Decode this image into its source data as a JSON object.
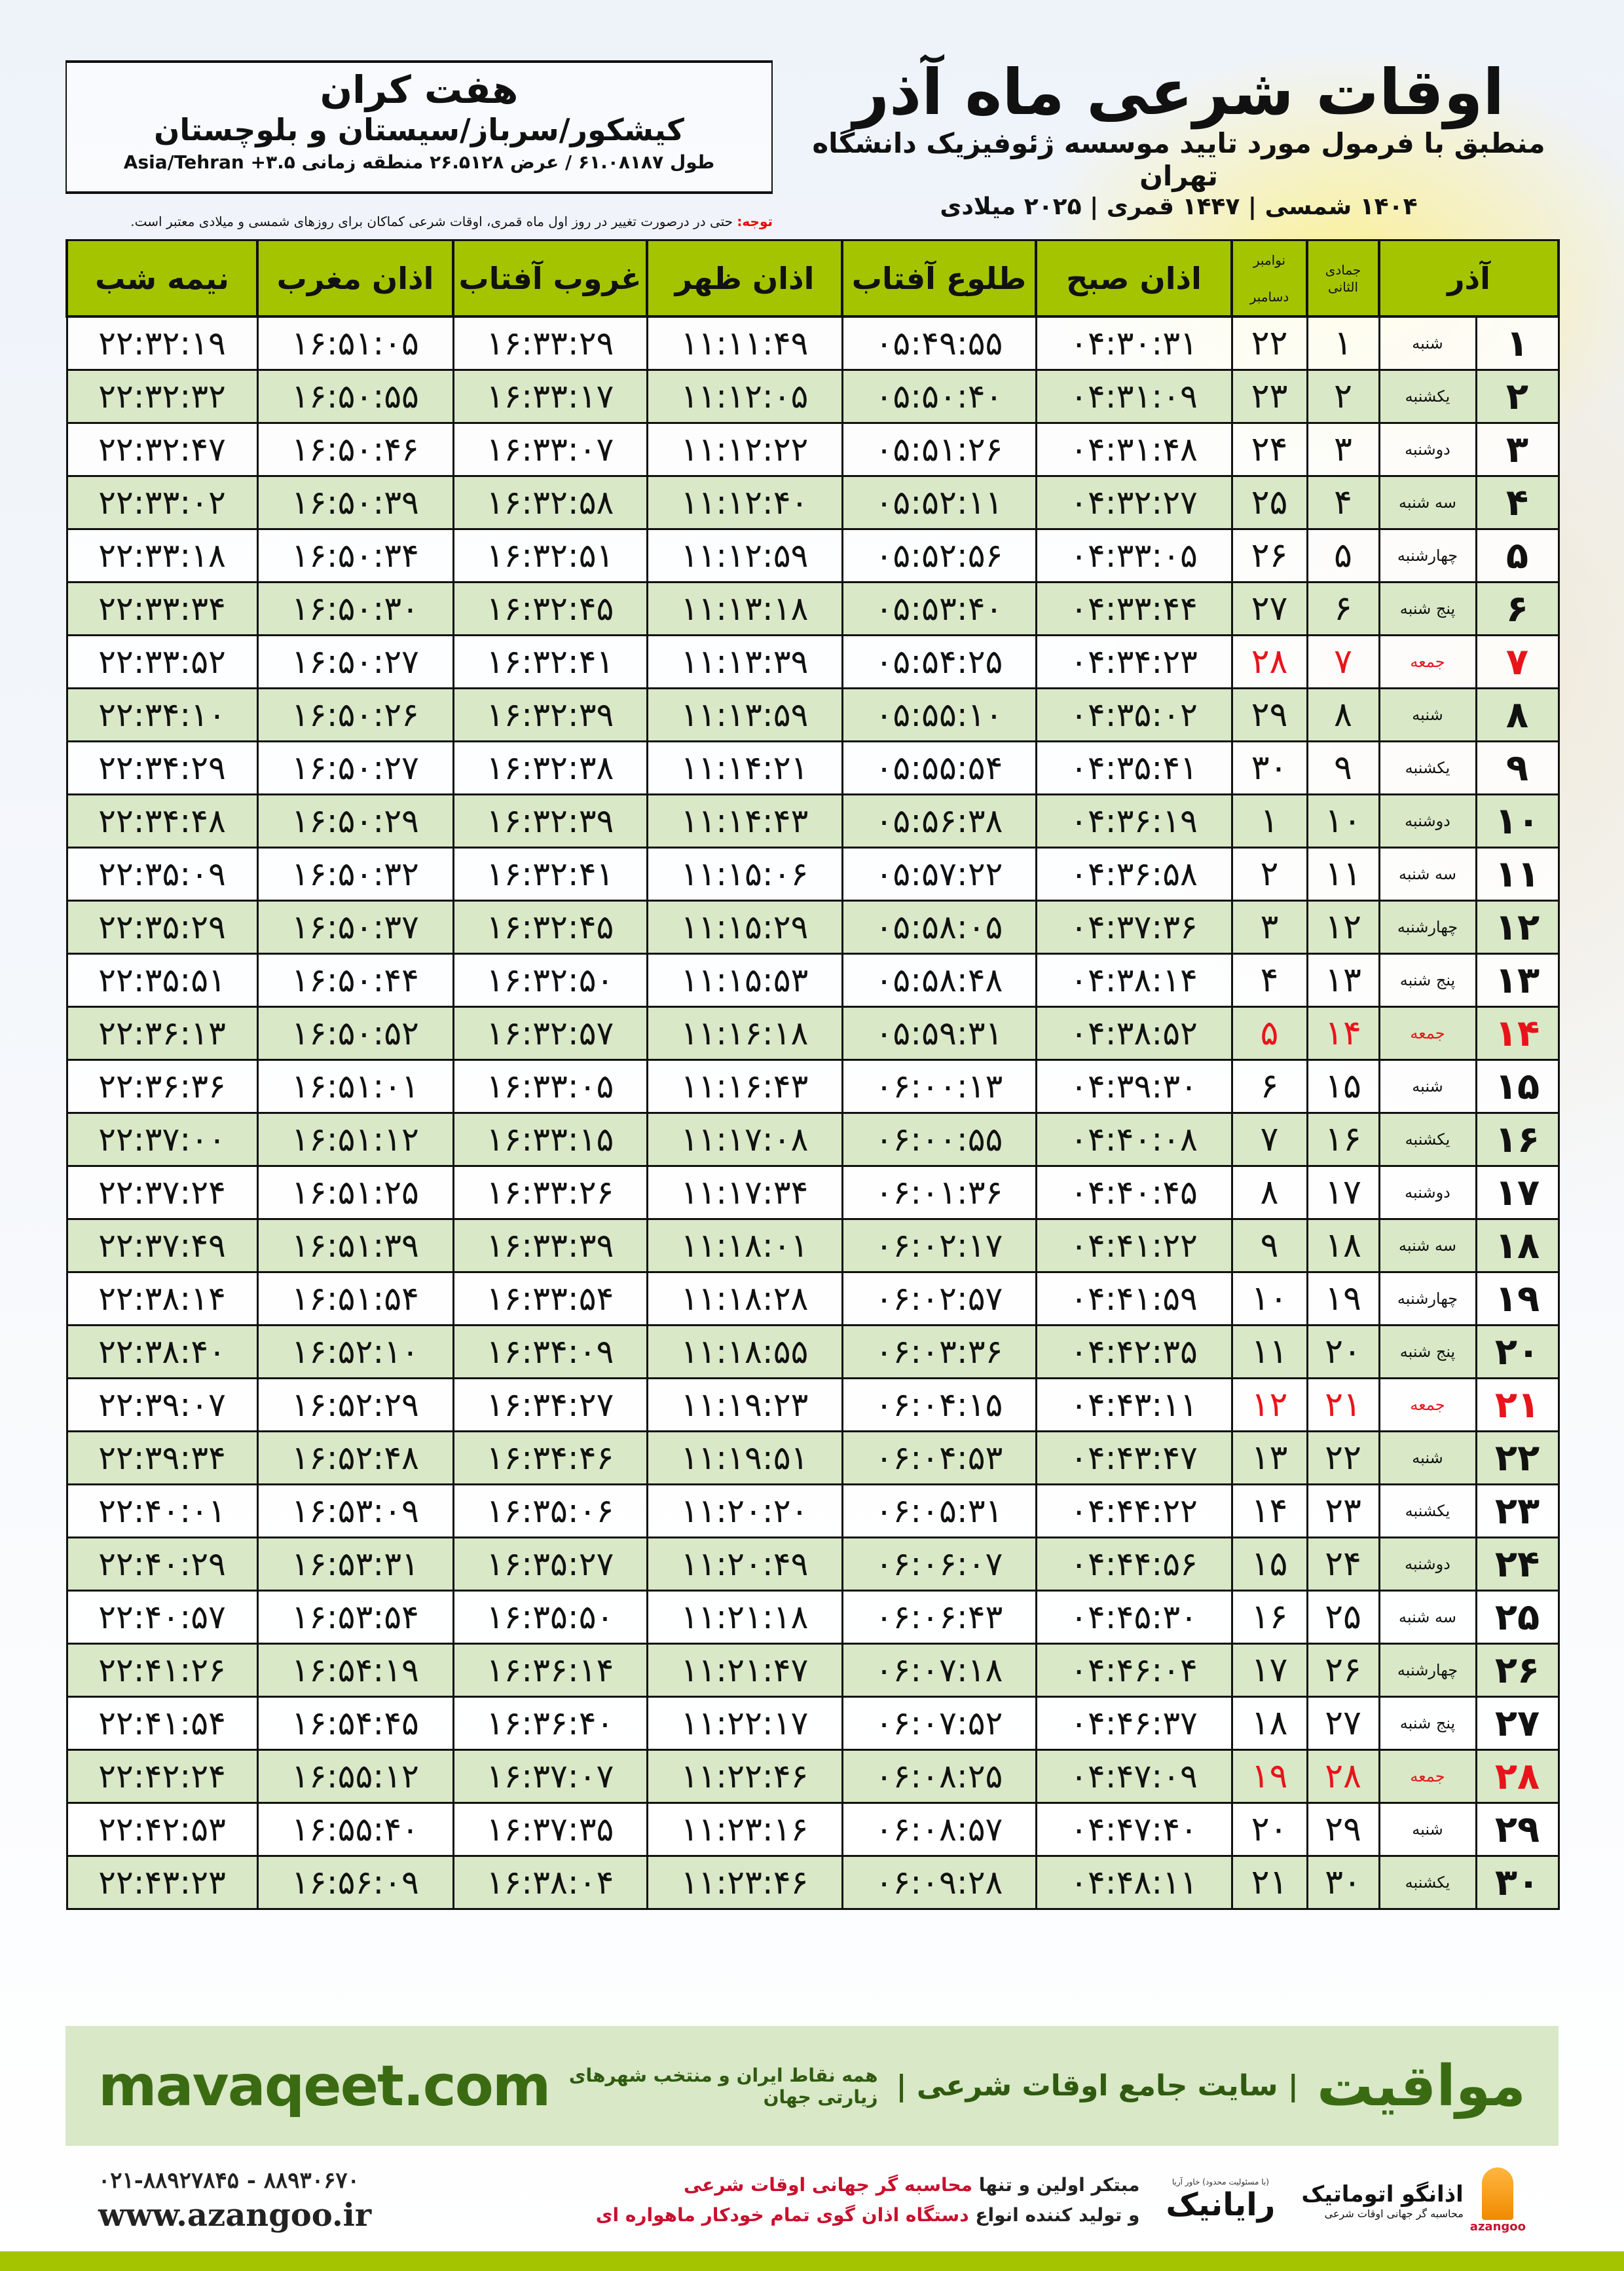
{
  "location": {
    "city": "هفت کران",
    "province": "کیشکور/سرباز/سیستان و بلوچستان",
    "coords": "طول ۶۱.۰۸۱۸۷ / عرض ۲۶.۵۱۲۸ منطقه زمانی ۳.۵+ Asia/Tehran"
  },
  "header": {
    "title": "اوقات شرعی ماه آذر",
    "subtitle": "منطبق با فرمول مورد تایید موسسه ژئوفیزیک دانشگاه تهران",
    "years": "۱۴۰۴ شمسی | ۱۴۴۷ قمری | ۲۰۲۵ میلادی",
    "note_label": "توجه:",
    "note_text": " حتی در درصورت تغییر در روز اول ماه قمری، اوقات شرعی کماکان برای روزهای شمسی و میلادی معتبر است."
  },
  "colors": {
    "header_green": "#a5c400",
    "row_green": "#d9e8c6",
    "friday_red": "#e8141b",
    "brand_green": "#3a6b12"
  },
  "table": {
    "columns": {
      "day": "آذر",
      "hijri": "جمادی الثانی",
      "greg_top": "نوامبر",
      "greg_bottom": "دسامبر",
      "subh": "اذان صبح",
      "tulu": "طلوع آفتاب",
      "zuhr": "اذان ظهر",
      "ghurub": "غروب آفتاب",
      "maghrib": "اذان مغرب",
      "nime": "نیمه شب"
    },
    "rows": [
      {
        "day": "۱",
        "weekday": "شنبه",
        "hijri": "۱",
        "greg": "۲۲",
        "subh": "۰۴:۳۰:۳۱",
        "tulu": "۰۵:۴۹:۵۵",
        "zuhr": "۱۱:۱۱:۴۹",
        "ghurub": "۱۶:۳۳:۲۹",
        "maghrib": "۱۶:۵۱:۰۵",
        "nime": "۲۲:۳۲:۱۹",
        "friday": false
      },
      {
        "day": "۲",
        "weekday": "یکشنبه",
        "hijri": "۲",
        "greg": "۲۳",
        "subh": "۰۴:۳۱:۰۹",
        "tulu": "۰۵:۵۰:۴۰",
        "zuhr": "۱۱:۱۲:۰۵",
        "ghurub": "۱۶:۳۳:۱۷",
        "maghrib": "۱۶:۵۰:۵۵",
        "nime": "۲۲:۳۲:۳۲",
        "friday": false
      },
      {
        "day": "۳",
        "weekday": "دوشنبه",
        "hijri": "۳",
        "greg": "۲۴",
        "subh": "۰۴:۳۱:۴۸",
        "tulu": "۰۵:۵۱:۲۶",
        "zuhr": "۱۱:۱۲:۲۲",
        "ghurub": "۱۶:۳۳:۰۷",
        "maghrib": "۱۶:۵۰:۴۶",
        "nime": "۲۲:۳۲:۴۷",
        "friday": false
      },
      {
        "day": "۴",
        "weekday": "سه شنبه",
        "hijri": "۴",
        "greg": "۲۵",
        "subh": "۰۴:۳۲:۲۷",
        "tulu": "۰۵:۵۲:۱۱",
        "zuhr": "۱۱:۱۲:۴۰",
        "ghurub": "۱۶:۳۲:۵۸",
        "maghrib": "۱۶:۵۰:۳۹",
        "nime": "۲۲:۳۳:۰۲",
        "friday": false
      },
      {
        "day": "۵",
        "weekday": "چهارشنبه",
        "hijri": "۵",
        "greg": "۲۶",
        "subh": "۰۴:۳۳:۰۵",
        "tulu": "۰۵:۵۲:۵۶",
        "zuhr": "۱۱:۱۲:۵۹",
        "ghurub": "۱۶:۳۲:۵۱",
        "maghrib": "۱۶:۵۰:۳۴",
        "nime": "۲۲:۳۳:۱۸",
        "friday": false
      },
      {
        "day": "۶",
        "weekday": "پنج شنبه",
        "hijri": "۶",
        "greg": "۲۷",
        "subh": "۰۴:۳۳:۴۴",
        "tulu": "۰۵:۵۳:۴۰",
        "zuhr": "۱۱:۱۳:۱۸",
        "ghurub": "۱۶:۳۲:۴۵",
        "maghrib": "۱۶:۵۰:۳۰",
        "nime": "۲۲:۳۳:۳۴",
        "friday": false
      },
      {
        "day": "۷",
        "weekday": "جمعه",
        "hijri": "۷",
        "greg": "۲۸",
        "subh": "۰۴:۳۴:۲۳",
        "tulu": "۰۵:۵۴:۲۵",
        "zuhr": "۱۱:۱۳:۳۹",
        "ghurub": "۱۶:۳۲:۴۱",
        "maghrib": "۱۶:۵۰:۲۷",
        "nime": "۲۲:۳۳:۵۲",
        "friday": true
      },
      {
        "day": "۸",
        "weekday": "شنبه",
        "hijri": "۸",
        "greg": "۲۹",
        "subh": "۰۴:۳۵:۰۲",
        "tulu": "۰۵:۵۵:۱۰",
        "zuhr": "۱۱:۱۳:۵۹",
        "ghurub": "۱۶:۳۲:۳۹",
        "maghrib": "۱۶:۵۰:۲۶",
        "nime": "۲۲:۳۴:۱۰",
        "friday": false
      },
      {
        "day": "۹",
        "weekday": "یکشنبه",
        "hijri": "۹",
        "greg": "۳۰",
        "subh": "۰۴:۳۵:۴۱",
        "tulu": "۰۵:۵۵:۵۴",
        "zuhr": "۱۱:۱۴:۲۱",
        "ghurub": "۱۶:۳۲:۳۸",
        "maghrib": "۱۶:۵۰:۲۷",
        "nime": "۲۲:۳۴:۲۹",
        "friday": false
      },
      {
        "day": "۱۰",
        "weekday": "دوشنبه",
        "hijri": "۱۰",
        "greg": "۱",
        "subh": "۰۴:۳۶:۱۹",
        "tulu": "۰۵:۵۶:۳۸",
        "zuhr": "۱۱:۱۴:۴۳",
        "ghurub": "۱۶:۳۲:۳۹",
        "maghrib": "۱۶:۵۰:۲۹",
        "nime": "۲۲:۳۴:۴۸",
        "friday": false
      },
      {
        "day": "۱۱",
        "weekday": "سه شنبه",
        "hijri": "۱۱",
        "greg": "۲",
        "subh": "۰۴:۳۶:۵۸",
        "tulu": "۰۵:۵۷:۲۲",
        "zuhr": "۱۱:۱۵:۰۶",
        "ghurub": "۱۶:۳۲:۴۱",
        "maghrib": "۱۶:۵۰:۳۲",
        "nime": "۲۲:۳۵:۰۹",
        "friday": false
      },
      {
        "day": "۱۲",
        "weekday": "چهارشنبه",
        "hijri": "۱۲",
        "greg": "۳",
        "subh": "۰۴:۳۷:۳۶",
        "tulu": "۰۵:۵۸:۰۵",
        "zuhr": "۱۱:۱۵:۲۹",
        "ghurub": "۱۶:۳۲:۴۵",
        "maghrib": "۱۶:۵۰:۳۷",
        "nime": "۲۲:۳۵:۲۹",
        "friday": false
      },
      {
        "day": "۱۳",
        "weekday": "پنج شنبه",
        "hijri": "۱۳",
        "greg": "۴",
        "subh": "۰۴:۳۸:۱۴",
        "tulu": "۰۵:۵۸:۴۸",
        "zuhr": "۱۱:۱۵:۵۳",
        "ghurub": "۱۶:۳۲:۵۰",
        "maghrib": "۱۶:۵۰:۴۴",
        "nime": "۲۲:۳۵:۵۱",
        "friday": false
      },
      {
        "day": "۱۴",
        "weekday": "جمعه",
        "hijri": "۱۴",
        "greg": "۵",
        "subh": "۰۴:۳۸:۵۲",
        "tulu": "۰۵:۵۹:۳۱",
        "zuhr": "۱۱:۱۶:۱۸",
        "ghurub": "۱۶:۳۲:۵۷",
        "maghrib": "۱۶:۵۰:۵۲",
        "nime": "۲۲:۳۶:۱۳",
        "friday": true
      },
      {
        "day": "۱۵",
        "weekday": "شنبه",
        "hijri": "۱۵",
        "greg": "۶",
        "subh": "۰۴:۳۹:۳۰",
        "tulu": "۰۶:۰۰:۱۳",
        "zuhr": "۱۱:۱۶:۴۳",
        "ghurub": "۱۶:۳۳:۰۵",
        "maghrib": "۱۶:۵۱:۰۱",
        "nime": "۲۲:۳۶:۳۶",
        "friday": false
      },
      {
        "day": "۱۶",
        "weekday": "یکشنبه",
        "hijri": "۱۶",
        "greg": "۷",
        "subh": "۰۴:۴۰:۰۸",
        "tulu": "۰۶:۰۰:۵۵",
        "zuhr": "۱۱:۱۷:۰۸",
        "ghurub": "۱۶:۳۳:۱۵",
        "maghrib": "۱۶:۵۱:۱۲",
        "nime": "۲۲:۳۷:۰۰",
        "friday": false
      },
      {
        "day": "۱۷",
        "weekday": "دوشنبه",
        "hijri": "۱۷",
        "greg": "۸",
        "subh": "۰۴:۴۰:۴۵",
        "tulu": "۰۶:۰۱:۳۶",
        "zuhr": "۱۱:۱۷:۳۴",
        "ghurub": "۱۶:۳۳:۲۶",
        "maghrib": "۱۶:۵۱:۲۵",
        "nime": "۲۲:۳۷:۲۴",
        "friday": false
      },
      {
        "day": "۱۸",
        "weekday": "سه شنبه",
        "hijri": "۱۸",
        "greg": "۹",
        "subh": "۰۴:۴۱:۲۲",
        "tulu": "۰۶:۰۲:۱۷",
        "zuhr": "۱۱:۱۸:۰۱",
        "ghurub": "۱۶:۳۳:۳۹",
        "maghrib": "۱۶:۵۱:۳۹",
        "nime": "۲۲:۳۷:۴۹",
        "friday": false
      },
      {
        "day": "۱۹",
        "weekday": "چهارشنبه",
        "hijri": "۱۹",
        "greg": "۱۰",
        "subh": "۰۴:۴۱:۵۹",
        "tulu": "۰۶:۰۲:۵۷",
        "zuhr": "۱۱:۱۸:۲۸",
        "ghurub": "۱۶:۳۳:۵۴",
        "maghrib": "۱۶:۵۱:۵۴",
        "nime": "۲۲:۳۸:۱۴",
        "friday": false
      },
      {
        "day": "۲۰",
        "weekday": "پنج شنبه",
        "hijri": "۲۰",
        "greg": "۱۱",
        "subh": "۰۴:۴۲:۳۵",
        "tulu": "۰۶:۰۳:۳۶",
        "zuhr": "۱۱:۱۸:۵۵",
        "ghurub": "۱۶:۳۴:۰۹",
        "maghrib": "۱۶:۵۲:۱۰",
        "nime": "۲۲:۳۸:۴۰",
        "friday": false
      },
      {
        "day": "۲۱",
        "weekday": "جمعه",
        "hijri": "۲۱",
        "greg": "۱۲",
        "subh": "۰۴:۴۳:۱۱",
        "tulu": "۰۶:۰۴:۱۵",
        "zuhr": "۱۱:۱۹:۲۳",
        "ghurub": "۱۶:۳۴:۲۷",
        "maghrib": "۱۶:۵۲:۲۹",
        "nime": "۲۲:۳۹:۰۷",
        "friday": true
      },
      {
        "day": "۲۲",
        "weekday": "شنبه",
        "hijri": "۲۲",
        "greg": "۱۳",
        "subh": "۰۴:۴۳:۴۷",
        "tulu": "۰۶:۰۴:۵۳",
        "zuhr": "۱۱:۱۹:۵۱",
        "ghurub": "۱۶:۳۴:۴۶",
        "maghrib": "۱۶:۵۲:۴۸",
        "nime": "۲۲:۳۹:۳۴",
        "friday": false
      },
      {
        "day": "۲۳",
        "weekday": "یکشنبه",
        "hijri": "۲۳",
        "greg": "۱۴",
        "subh": "۰۴:۴۴:۲۲",
        "tulu": "۰۶:۰۵:۳۱",
        "zuhr": "۱۱:۲۰:۲۰",
        "ghurub": "۱۶:۳۵:۰۶",
        "maghrib": "۱۶:۵۳:۰۹",
        "nime": "۲۲:۴۰:۰۱",
        "friday": false
      },
      {
        "day": "۲۴",
        "weekday": "دوشنبه",
        "hijri": "۲۴",
        "greg": "۱۵",
        "subh": "۰۴:۴۴:۵۶",
        "tulu": "۰۶:۰۶:۰۷",
        "zuhr": "۱۱:۲۰:۴۹",
        "ghurub": "۱۶:۳۵:۲۷",
        "maghrib": "۱۶:۵۳:۳۱",
        "nime": "۲۲:۴۰:۲۹",
        "friday": false
      },
      {
        "day": "۲۵",
        "weekday": "سه شنبه",
        "hijri": "۲۵",
        "greg": "۱۶",
        "subh": "۰۴:۴۵:۳۰",
        "tulu": "۰۶:۰۶:۴۳",
        "zuhr": "۱۱:۲۱:۱۸",
        "ghurub": "۱۶:۳۵:۵۰",
        "maghrib": "۱۶:۵۳:۵۴",
        "nime": "۲۲:۴۰:۵۷",
        "friday": false
      },
      {
        "day": "۲۶",
        "weekday": "چهارشنبه",
        "hijri": "۲۶",
        "greg": "۱۷",
        "subh": "۰۴:۴۶:۰۴",
        "tulu": "۰۶:۰۷:۱۸",
        "zuhr": "۱۱:۲۱:۴۷",
        "ghurub": "۱۶:۳۶:۱۴",
        "maghrib": "۱۶:۵۴:۱۹",
        "nime": "۲۲:۴۱:۲۶",
        "friday": false
      },
      {
        "day": "۲۷",
        "weekday": "پنج شنبه",
        "hijri": "۲۷",
        "greg": "۱۸",
        "subh": "۰۴:۴۶:۳۷",
        "tulu": "۰۶:۰۷:۵۲",
        "zuhr": "۱۱:۲۲:۱۷",
        "ghurub": "۱۶:۳۶:۴۰",
        "maghrib": "۱۶:۵۴:۴۵",
        "nime": "۲۲:۴۱:۵۴",
        "friday": false
      },
      {
        "day": "۲۸",
        "weekday": "جمعه",
        "hijri": "۲۸",
        "greg": "۱۹",
        "subh": "۰۴:۴۷:۰۹",
        "tulu": "۰۶:۰۸:۲۵",
        "zuhr": "۱۱:۲۲:۴۶",
        "ghurub": "۱۶:۳۷:۰۷",
        "maghrib": "۱۶:۵۵:۱۲",
        "nime": "۲۲:۴۲:۲۴",
        "friday": true
      },
      {
        "day": "۲۹",
        "weekday": "شنبه",
        "hijri": "۲۹",
        "greg": "۲۰",
        "subh": "۰۴:۴۷:۴۰",
        "tulu": "۰۶:۰۸:۵۷",
        "zuhr": "۱۱:۲۳:۱۶",
        "ghurub": "۱۶:۳۷:۳۵",
        "maghrib": "۱۶:۵۵:۴۰",
        "nime": "۲۲:۴۲:۵۳",
        "friday": false
      },
      {
        "day": "۳۰",
        "weekday": "یکشنبه",
        "hijri": "۳۰",
        "greg": "۲۱",
        "subh": "۰۴:۴۸:۱۱",
        "tulu": "۰۶:۰۹:۲۸",
        "zuhr": "۱۱:۲۳:۴۶",
        "ghurub": "۱۶:۳۸:۰۴",
        "maghrib": "۱۶:۵۶:۰۹",
        "nime": "۲۲:۴۳:۲۳",
        "friday": false
      }
    ]
  },
  "footer": {
    "brand": "مواقیت",
    "brand_title": "| سایت جامع اوقات شرعی |",
    "tagline": "همه نقاط ایران و منتخب شهرهای زیارتی جهان",
    "site": "mavaqeet.com",
    "phones": "۰۲۱-۸۸۹۲۷۸۴۵ - ۸۸۹۳۰۶۷۰",
    "web": "www.azangoo.ir",
    "promo1_a": "مبتکر اولین و تنها ",
    "promo1_b": "محاسبه گر جهانی اوقات شرعی",
    "promo2_a": "و تولید کننده انواع ",
    "promo2_b": "دستگاه اذان گوی تمام خودکار ماهواره ای",
    "raianik": "رایانیک",
    "raianik_note": "(با مسئولیت محدود) خاور آریا",
    "azangoo_name": "اذانگو اتوماتیک",
    "azangoo_sub": "محاسبه گر جهانی اوقات شرعی",
    "azangoo_latin": "azangoo"
  }
}
